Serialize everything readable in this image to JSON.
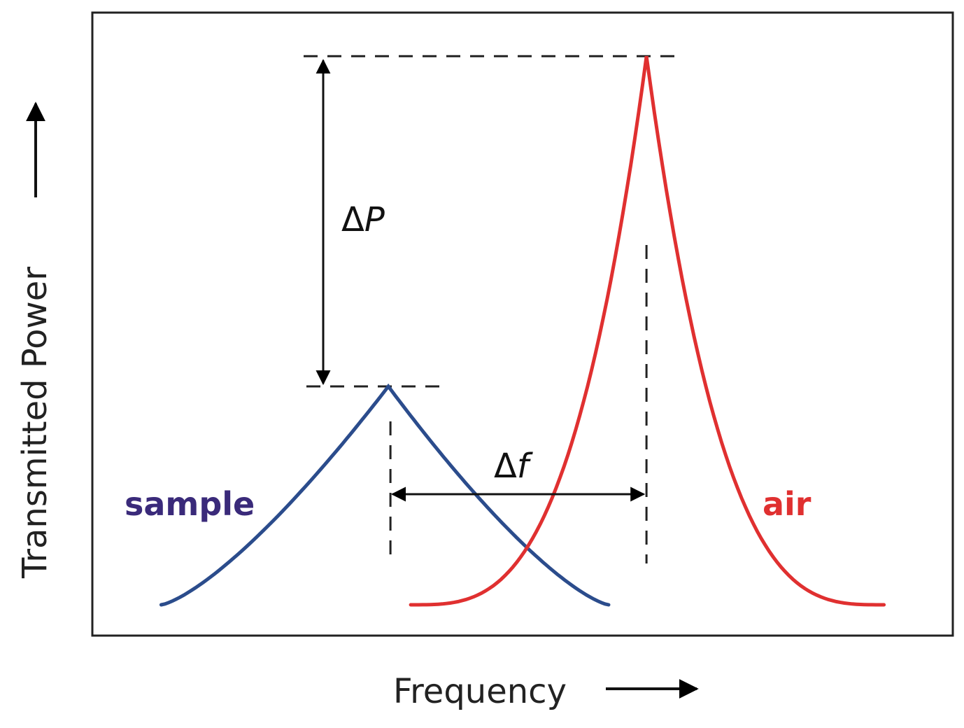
{
  "chart_data": {
    "type": "line",
    "title": "",
    "xlabel": "Frequency",
    "ylabel": "Transmitted Power",
    "xlim": [
      0,
      100
    ],
    "ylim": [
      0,
      100
    ],
    "grid": false,
    "series": [
      {
        "name": "sample",
        "color": "#2b4c8c",
        "label_color": "#3a2a7a",
        "peak_x": 34.4,
        "peak_y": 40,
        "x_min": 8,
        "x_max": 60
      },
      {
        "name": "air",
        "color": "#e03030",
        "label_color": "#e03030",
        "peak_x": 64.4,
        "peak_y": 93,
        "x_min": 37,
        "x_max": 92
      }
    ],
    "annotations": [
      {
        "name": "delta-p",
        "prefix": "Δ",
        "var": "P",
        "kind": "vertical"
      },
      {
        "name": "delta-f",
        "prefix": "Δ",
        "var": "f",
        "kind": "horizontal"
      }
    ]
  }
}
